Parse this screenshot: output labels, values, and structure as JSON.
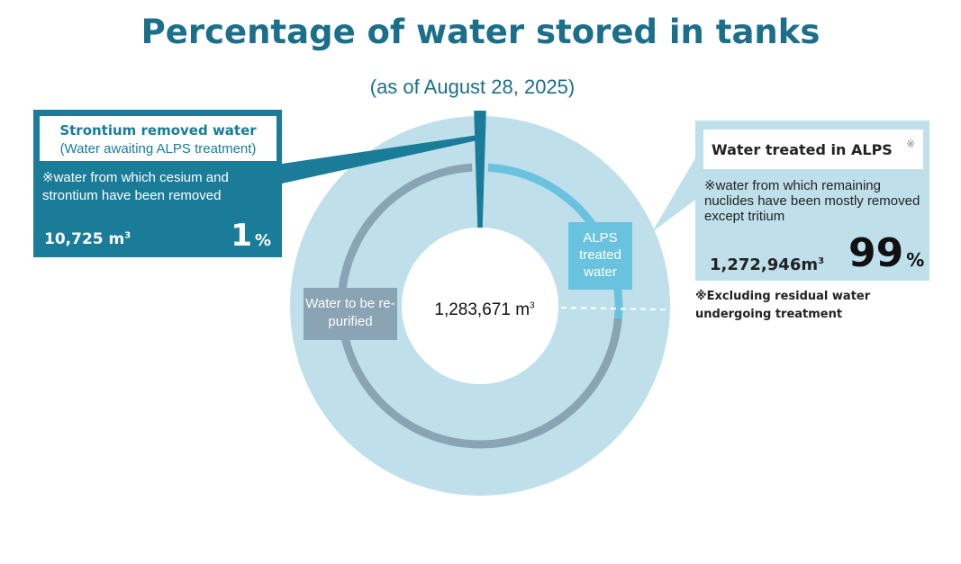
{
  "title": "Percentage of water stored in tanks",
  "subtitle": "(as of August 28, 2025)",
  "center_total": "1,283,671 m",
  "center_unit_sup": "3",
  "strontium": {
    "heading": "Strontium removed water",
    "subheading": "(Water awaiting ALPS treatment)",
    "note": "※water from which cesium and strontium have been  removed",
    "volume": "10,725 m",
    "volume_sup": "3",
    "percent": "1",
    "percent_unit": "%"
  },
  "alps": {
    "heading": "Water treated in ALPS",
    "heading_mark": "※",
    "note": "※water from which remaining nuclides have been mostly removed except tritium",
    "volume": "1,272,946m",
    "volume_sup": "3",
    "percent": "99",
    "percent_unit": "%"
  },
  "footnote": "※Excluding residual water undergoing treatment",
  "inner_labels": {
    "alps_treated": "ALPS treated water",
    "re_purified": "Water to be re-purified"
  },
  "colors": {
    "title": "#1b6f8a",
    "outer_ring": "#bfe0ea",
    "strontium": "#1a7c99",
    "alps_treated": "#6ac3de",
    "re_purified": "#8aa3b5"
  },
  "chart_data": {
    "type": "pie",
    "title": "Percentage of water stored in tanks",
    "subtitle": "(as of August 28, 2025)",
    "total": 1283671,
    "unit": "m³",
    "outer_ring": [
      {
        "name": "Strontium removed water",
        "value": 10725,
        "percent": 1
      },
      {
        "name": "Water treated in ALPS",
        "value": 1272946,
        "percent": 99
      }
    ],
    "inner_ring": [
      {
        "name": "ALPS treated water",
        "share_of_alps_percent": 26
      },
      {
        "name": "Water to be re-purified",
        "share_of_alps_percent": 74
      }
    ]
  }
}
